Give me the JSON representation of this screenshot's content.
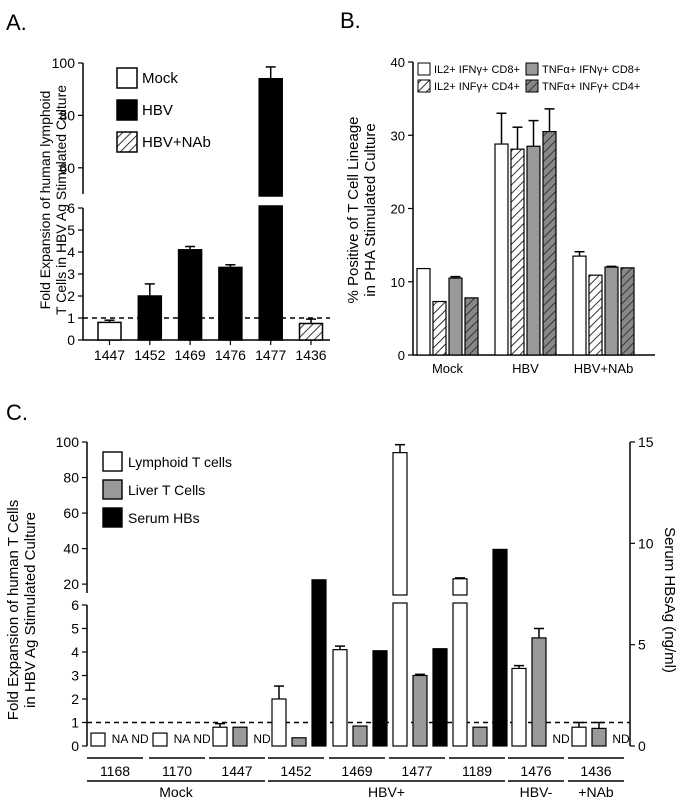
{
  "chart_data": [
    {
      "panel": "A.",
      "type": "bar",
      "ylabel_lines": [
        "Fold Expansion of human lymphoid",
        "T Cells in HBV Ag Stimulated Culture"
      ],
      "ylim_lower": [
        0,
        6
      ],
      "ylim_upper": [
        50,
        100
      ],
      "yticks_lower": [
        "0",
        "1",
        "2",
        "3",
        "4",
        "5",
        "6"
      ],
      "yticks_upper": [
        "60",
        "80",
        "100"
      ],
      "reference_line": 1,
      "legend": [
        {
          "label": "Mock",
          "fill": "white"
        },
        {
          "label": "HBV",
          "fill": "black"
        },
        {
          "label": "HBV+NAb",
          "fill": "hatch"
        }
      ],
      "categories": [
        "1447",
        "1452",
        "1469",
        "1476",
        "1477",
        "1436"
      ],
      "values": [
        0.8,
        2.0,
        4.1,
        3.3,
        94,
        0.75
      ],
      "errors": [
        0.1,
        0.55,
        0.15,
        0.12,
        4.5,
        0.2
      ],
      "fills": [
        "white",
        "black",
        "black",
        "black",
        "black",
        "hatch"
      ]
    },
    {
      "panel": "B.",
      "type": "bar",
      "ylabel_lines": [
        "% Positive of T Cell Lineage",
        "in PHA Stimulated Culture"
      ],
      "ylim": [
        0,
        40
      ],
      "yticks": [
        "0",
        "10",
        "20",
        "30",
        "40"
      ],
      "categories": [
        "Mock",
        "HBV",
        "HBV+NAb"
      ],
      "legend": [
        {
          "label": "IL2+ IFNγ+ CD8+",
          "fill": "white"
        },
        {
          "label": "IL2+ INFγ+ CD4+",
          "fill": "hatch"
        },
        {
          "label": "TNFα+ IFNγ+ CD8+",
          "fill": "gray"
        },
        {
          "label": "TNFα+ INFγ+ CD4+",
          "fill": "grayhatch"
        }
      ],
      "series": [
        {
          "name": "IL2+ IFNγ+ CD8+",
          "fill": "white",
          "values": [
            11.8,
            28.8,
            13.5
          ],
          "errors": [
            0,
            4.2,
            0.6
          ]
        },
        {
          "name": "IL2+ INFγ+ CD4+",
          "fill": "hatch",
          "values": [
            7.3,
            28.1,
            10.9
          ],
          "errors": [
            0,
            3.0,
            0
          ]
        },
        {
          "name": "TNFα+ IFNγ+ CD8+",
          "fill": "gray",
          "values": [
            10.5,
            28.5,
            12.0
          ],
          "errors": [
            0.2,
            3.5,
            0.1
          ]
        },
        {
          "name": "TNFα+ INFγ+ CD4+",
          "fill": "grayhatch",
          "values": [
            7.8,
            30.5,
            11.9
          ],
          "errors": [
            0,
            3.1,
            0
          ]
        }
      ]
    },
    {
      "panel": "C.",
      "type": "bar",
      "ylabel_lines": [
        "Fold Expansion of human T Cells",
        "in HBV Ag Stimulated Culture"
      ],
      "y2label": "Serum HBsAg (ng/ml)",
      "ylim_lower": [
        0,
        6
      ],
      "ylim_upper": [
        15,
        100
      ],
      "yticks_lower": [
        "0",
        "1",
        "2",
        "3",
        "4",
        "5",
        "6"
      ],
      "yticks_upper": [
        "20",
        "40",
        "60",
        "80",
        "100"
      ],
      "y2lim": [
        0,
        15
      ],
      "y2ticks": [
        "0",
        "5",
        "10",
        "15"
      ],
      "reference_line": 1,
      "legend": [
        {
          "label": "Lymphoid T cells",
          "fill": "white"
        },
        {
          "label": "Liver T Cells",
          "fill": "gray"
        },
        {
          "label": "Serum HBs",
          "fill": "black"
        }
      ],
      "categories": [
        "1168",
        "1170",
        "1447",
        "1452",
        "1469",
        "1477",
        "1189",
        "1476",
        "1436"
      ],
      "groups": [
        {
          "label": "Mock",
          "span": [
            0,
            2
          ]
        },
        {
          "label": "HBV+",
          "span": [
            3,
            6
          ]
        },
        {
          "label": "HBV-",
          "span": [
            7,
            7
          ]
        },
        {
          "label": "+NAb",
          "span": [
            8,
            8
          ]
        }
      ],
      "series": [
        {
          "name": "Lymphoid T cells",
          "fill": "white",
          "axis": "left",
          "values": [
            0.55,
            0.55,
            0.8,
            2.0,
            4.1,
            94,
            23,
            3.3,
            0.8
          ],
          "errors": [
            0,
            0,
            0.15,
            0.55,
            0.15,
            4.5,
            0.5,
            0.12,
            0.2
          ]
        },
        {
          "name": "Liver T Cells",
          "fill": "gray",
          "axis": "left",
          "values": [
            null,
            null,
            0.8,
            0.35,
            0.85,
            3.0,
            0.8,
            4.6,
            0.75
          ],
          "errors": [
            0,
            0,
            0,
            0,
            0,
            0.05,
            0,
            0.4,
            0.25
          ],
          "text": [
            "NA",
            "NA",
            null,
            null,
            null,
            null,
            null,
            null,
            null
          ]
        },
        {
          "name": "Serum HBs",
          "fill": "black",
          "axis": "right",
          "values": [
            null,
            null,
            null,
            8.2,
            4.7,
            4.8,
            9.7,
            null,
            null
          ],
          "errors": [
            0,
            0,
            0,
            0,
            0,
            0,
            0,
            0,
            0
          ],
          "text": [
            "ND",
            "ND",
            "ND",
            null,
            null,
            null,
            null,
            "ND",
            "ND"
          ]
        }
      ]
    }
  ]
}
